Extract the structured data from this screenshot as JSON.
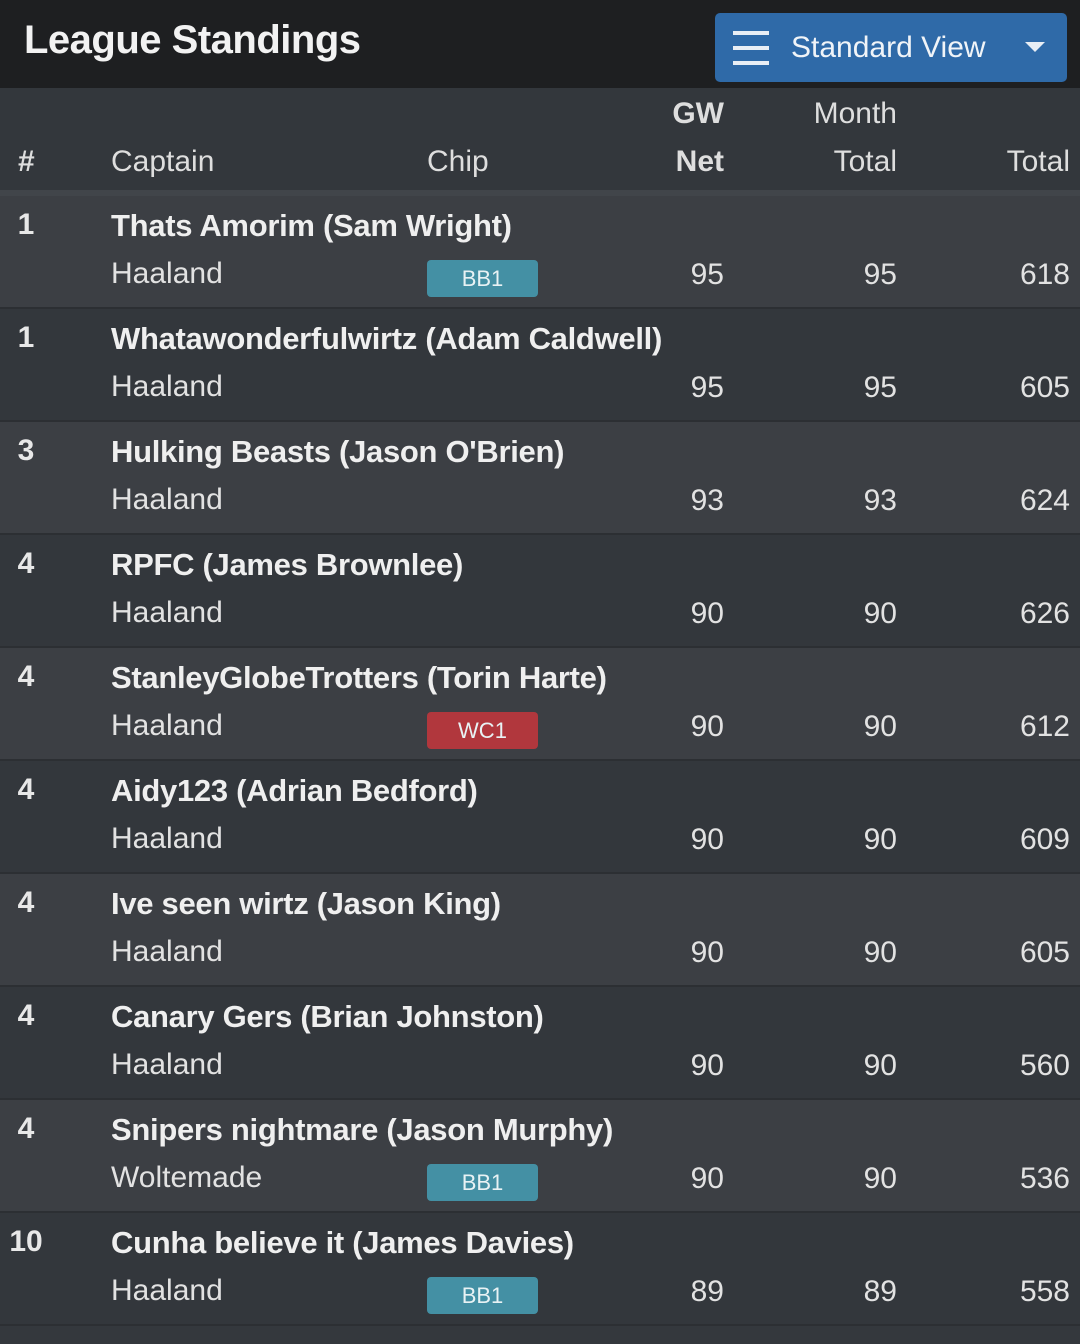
{
  "header": {
    "title": "League Standings",
    "view_button": {
      "label": "Standard View",
      "icon": "hamburger-menu-icon",
      "caret": "caret-down-icon",
      "color": "#2f6aa8"
    }
  },
  "columns": {
    "rank": "#",
    "captain": "Captain",
    "chip": "Chip",
    "gw_line1": "GW",
    "gw_line2": "Net",
    "month_line1": "Month",
    "month_line2": "Total",
    "total": "Total"
  },
  "chip_colors": {
    "BB1": "#4490a4",
    "WC1": "#b1373d"
  },
  "rows": [
    {
      "rank": "1",
      "team": "Thats Amorim (Sam Wright)",
      "captain": "Haaland",
      "chip": "BB1",
      "gw": "95",
      "month": "95",
      "total": "618"
    },
    {
      "rank": "1",
      "team": "Whatawonderfulwirtz (Adam Caldwell)",
      "captain": "Haaland",
      "chip": "",
      "gw": "95",
      "month": "95",
      "total": "605"
    },
    {
      "rank": "3",
      "team": "Hulking Beasts (Jason O'Brien)",
      "captain": "Haaland",
      "chip": "",
      "gw": "93",
      "month": "93",
      "total": "624"
    },
    {
      "rank": "4",
      "team": "RPFC (James Brownlee)",
      "captain": "Haaland",
      "chip": "",
      "gw": "90",
      "month": "90",
      "total": "626"
    },
    {
      "rank": "4",
      "team": "StanleyGlobeTrotters (Torin Harte)",
      "captain": "Haaland",
      "chip": "WC1",
      "gw": "90",
      "month": "90",
      "total": "612"
    },
    {
      "rank": "4",
      "team": "Aidy123 (Adrian Bedford)",
      "captain": "Haaland",
      "chip": "",
      "gw": "90",
      "month": "90",
      "total": "609"
    },
    {
      "rank": "4",
      "team": "Ive seen wirtz (Jason King)",
      "captain": "Haaland",
      "chip": "",
      "gw": "90",
      "month": "90",
      "total": "605"
    },
    {
      "rank": "4",
      "team": "Canary Gers (Brian Johnston)",
      "captain": "Haaland",
      "chip": "",
      "gw": "90",
      "month": "90",
      "total": "560"
    },
    {
      "rank": "4",
      "team": "Snipers nightmare (Jason Murphy)",
      "captain": "Woltemade",
      "chip": "BB1",
      "gw": "90",
      "month": "90",
      "total": "536"
    },
    {
      "rank": "10",
      "team": "Cunha believe it (James Davies)",
      "captain": "Haaland",
      "chip": "BB1",
      "gw": "89",
      "month": "89",
      "total": "558"
    }
  ]
}
